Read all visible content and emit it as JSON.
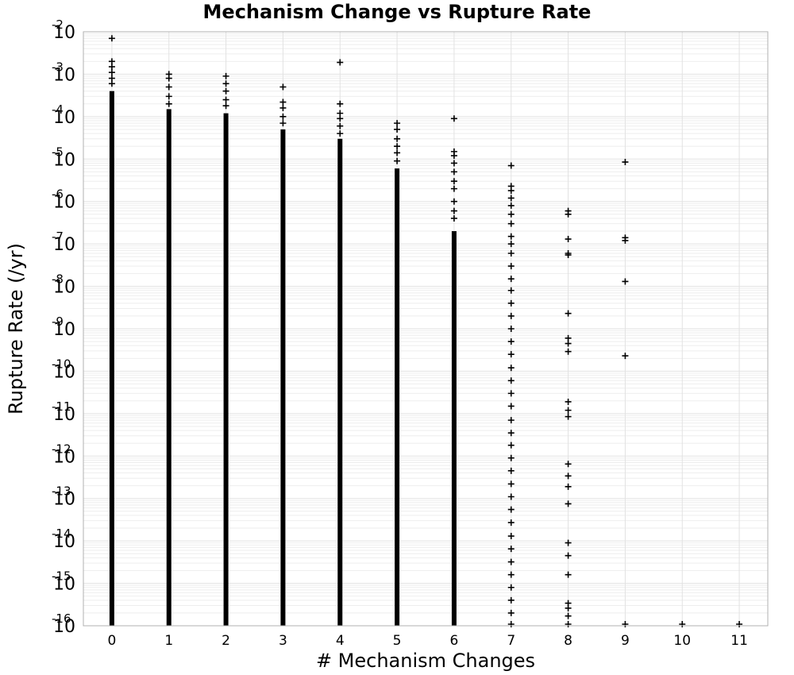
{
  "chart_data": {
    "type": "scatter",
    "title": "Mechanism Change vs Rupture Rate",
    "xlabel": "# Mechanism Changes",
    "ylabel": "Rupture Rate (/yr)",
    "xlim": [
      -0.5,
      11.5
    ],
    "ylim": [
      1e-16,
      0.01
    ],
    "yscale": "log",
    "grid": true,
    "marker": "+",
    "x_ticks": [
      "0",
      "1",
      "2",
      "3",
      "4",
      "5",
      "6",
      "7",
      "8",
      "9",
      "10",
      "11"
    ],
    "y_ticks": [
      {
        "base": "10",
        "exp": "-2"
      },
      {
        "base": "10",
        "exp": "-3"
      },
      {
        "base": "10",
        "exp": "-4"
      },
      {
        "base": "10",
        "exp": "-5"
      },
      {
        "base": "10",
        "exp": "-6"
      },
      {
        "base": "10",
        "exp": "-7"
      },
      {
        "base": "10",
        "exp": "-8"
      },
      {
        "base": "10",
        "exp": "-9"
      },
      {
        "base": "10",
        "exp": "-10"
      },
      {
        "base": "10",
        "exp": "-11"
      },
      {
        "base": "10",
        "exp": "-12"
      },
      {
        "base": "10",
        "exp": "-13"
      },
      {
        "base": "10",
        "exp": "-14"
      },
      {
        "base": "10",
        "exp": "-15"
      },
      {
        "base": "10",
        "exp": "-16"
      }
    ],
    "dense_ranges": [
      {
        "x": 0,
        "y_min": 1e-16,
        "y_max": 0.0004
      },
      {
        "x": 1,
        "y_min": 1e-16,
        "y_max": 0.00015
      },
      {
        "x": 2,
        "y_min": 1e-16,
        "y_max": 0.00012
      },
      {
        "x": 3,
        "y_min": 1e-16,
        "y_max": 5e-05
      },
      {
        "x": 4,
        "y_min": 1e-16,
        "y_max": 3e-05
      },
      {
        "x": 5,
        "y_min": 1e-16,
        "y_max": 6e-06
      },
      {
        "x": 6,
        "y_min": 1e-16,
        "y_max": 2e-07
      }
    ],
    "points": [
      {
        "x": 0,
        "y": 0.007
      },
      {
        "x": 0,
        "y": 0.002
      },
      {
        "x": 0,
        "y": 0.0015
      },
      {
        "x": 0,
        "y": 0.0011
      },
      {
        "x": 0,
        "y": 0.0008
      },
      {
        "x": 0,
        "y": 0.0006
      },
      {
        "x": 1,
        "y": 0.001
      },
      {
        "x": 1,
        "y": 0.0008
      },
      {
        "x": 1,
        "y": 0.0005
      },
      {
        "x": 1,
        "y": 0.0003
      },
      {
        "x": 1,
        "y": 0.0002
      },
      {
        "x": 2,
        "y": 0.0009
      },
      {
        "x": 2,
        "y": 0.0006
      },
      {
        "x": 2,
        "y": 0.0004
      },
      {
        "x": 2,
        "y": 0.00025
      },
      {
        "x": 2,
        "y": 0.00018
      },
      {
        "x": 3,
        "y": 0.0005
      },
      {
        "x": 3,
        "y": 0.00022
      },
      {
        "x": 3,
        "y": 0.00016
      },
      {
        "x": 3,
        "y": 0.0001
      },
      {
        "x": 3,
        "y": 7e-05
      },
      {
        "x": 4,
        "y": 0.0019
      },
      {
        "x": 4,
        "y": 0.0002
      },
      {
        "x": 4,
        "y": 0.00012
      },
      {
        "x": 4,
        "y": 9e-05
      },
      {
        "x": 4,
        "y": 6e-05
      },
      {
        "x": 4,
        "y": 4e-05
      },
      {
        "x": 5,
        "y": 7e-05
      },
      {
        "x": 5,
        "y": 5e-05
      },
      {
        "x": 5,
        "y": 3e-05
      },
      {
        "x": 5,
        "y": 2e-05
      },
      {
        "x": 5,
        "y": 1.4e-05
      },
      {
        "x": 5,
        "y": 9e-06
      },
      {
        "x": 6,
        "y": 9e-05
      },
      {
        "x": 6,
        "y": 1.5e-05
      },
      {
        "x": 6,
        "y": 1.2e-05
      },
      {
        "x": 6,
        "y": 8e-06
      },
      {
        "x": 6,
        "y": 5e-06
      },
      {
        "x": 6,
        "y": 3e-06
      },
      {
        "x": 6,
        "y": 2e-06
      },
      {
        "x": 6,
        "y": 1e-06
      },
      {
        "x": 6,
        "y": 6e-07
      },
      {
        "x": 6,
        "y": 4e-07
      },
      {
        "x": 7,
        "y": 7e-06
      },
      {
        "x": 7,
        "y": 2.3e-06
      },
      {
        "x": 7,
        "y": 1.8e-06
      },
      {
        "x": 7,
        "y": 1.2e-06
      },
      {
        "x": 7,
        "y": 8e-07
      },
      {
        "x": 7,
        "y": 5e-07
      },
      {
        "x": 7,
        "y": 3e-07
      },
      {
        "x": 7,
        "y": 1.5e-07
      },
      {
        "x": 7,
        "y": 1e-07
      },
      {
        "x": 7,
        "y": 6e-08
      },
      {
        "x": 7,
        "y": 3e-08
      },
      {
        "x": 7,
        "y": 1.5e-08
      },
      {
        "x": 7,
        "y": 8e-09
      },
      {
        "x": 7,
        "y": 4e-09
      },
      {
        "x": 7,
        "y": 2e-09
      },
      {
        "x": 7,
        "y": 1e-09
      },
      {
        "x": 7,
        "y": 5e-10
      },
      {
        "x": 7,
        "y": 2.5e-10
      },
      {
        "x": 7,
        "y": 1.2e-10
      },
      {
        "x": 7,
        "y": 6e-11
      },
      {
        "x": 7,
        "y": 3e-11
      },
      {
        "x": 7,
        "y": 1.5e-11
      },
      {
        "x": 7,
        "y": 7e-12
      },
      {
        "x": 7,
        "y": 3.5e-12
      },
      {
        "x": 7,
        "y": 1.8e-12
      },
      {
        "x": 7,
        "y": 9e-13
      },
      {
        "x": 7,
        "y": 4.5e-13
      },
      {
        "x": 7,
        "y": 2.2e-13
      },
      {
        "x": 7,
        "y": 1.1e-13
      },
      {
        "x": 7,
        "y": 5.5e-14
      },
      {
        "x": 7,
        "y": 2.7e-14
      },
      {
        "x": 7,
        "y": 1.3e-14
      },
      {
        "x": 7,
        "y": 6.5e-15
      },
      {
        "x": 7,
        "y": 3.2e-15
      },
      {
        "x": 7,
        "y": 1.6e-15
      },
      {
        "x": 7,
        "y": 8e-16
      },
      {
        "x": 7,
        "y": 4e-16
      },
      {
        "x": 7,
        "y": 2e-16
      },
      {
        "x": 7,
        "y": 1e-16
      },
      {
        "x": 8,
        "y": 6e-07
      },
      {
        "x": 8,
        "y": 5e-07
      },
      {
        "x": 8,
        "y": 1.3e-07
      },
      {
        "x": 8,
        "y": 6e-08
      },
      {
        "x": 8,
        "y": 5.5e-08
      },
      {
        "x": 8,
        "y": 2.3e-09
      },
      {
        "x": 8,
        "y": 6e-10
      },
      {
        "x": 8,
        "y": 4.5e-10
      },
      {
        "x": 8,
        "y": 2.9e-10
      },
      {
        "x": 8,
        "y": 1.9e-11
      },
      {
        "x": 8,
        "y": 1.2e-11
      },
      {
        "x": 8,
        "y": 8.5e-12
      },
      {
        "x": 8,
        "y": 6.5e-13
      },
      {
        "x": 8,
        "y": 3.4e-13
      },
      {
        "x": 8,
        "y": 1.9e-13
      },
      {
        "x": 8,
        "y": 7.5e-14
      },
      {
        "x": 8,
        "y": 9e-15
      },
      {
        "x": 8,
        "y": 4.5e-15
      },
      {
        "x": 8,
        "y": 1.6e-15
      },
      {
        "x": 8,
        "y": 3.4e-16
      },
      {
        "x": 8,
        "y": 2.6e-16
      },
      {
        "x": 8,
        "y": 1.7e-16
      },
      {
        "x": 8,
        "y": 1e-16
      },
      {
        "x": 9,
        "y": 8.5e-06
      },
      {
        "x": 9,
        "y": 1.4e-07
      },
      {
        "x": 9,
        "y": 1.2e-07
      },
      {
        "x": 9,
        "y": 1.3e-08
      },
      {
        "x": 9,
        "y": 2.3e-10
      },
      {
        "x": 9,
        "y": 1e-16
      },
      {
        "x": 10,
        "y": 1e-16
      },
      {
        "x": 11,
        "y": 1e-16
      }
    ]
  }
}
